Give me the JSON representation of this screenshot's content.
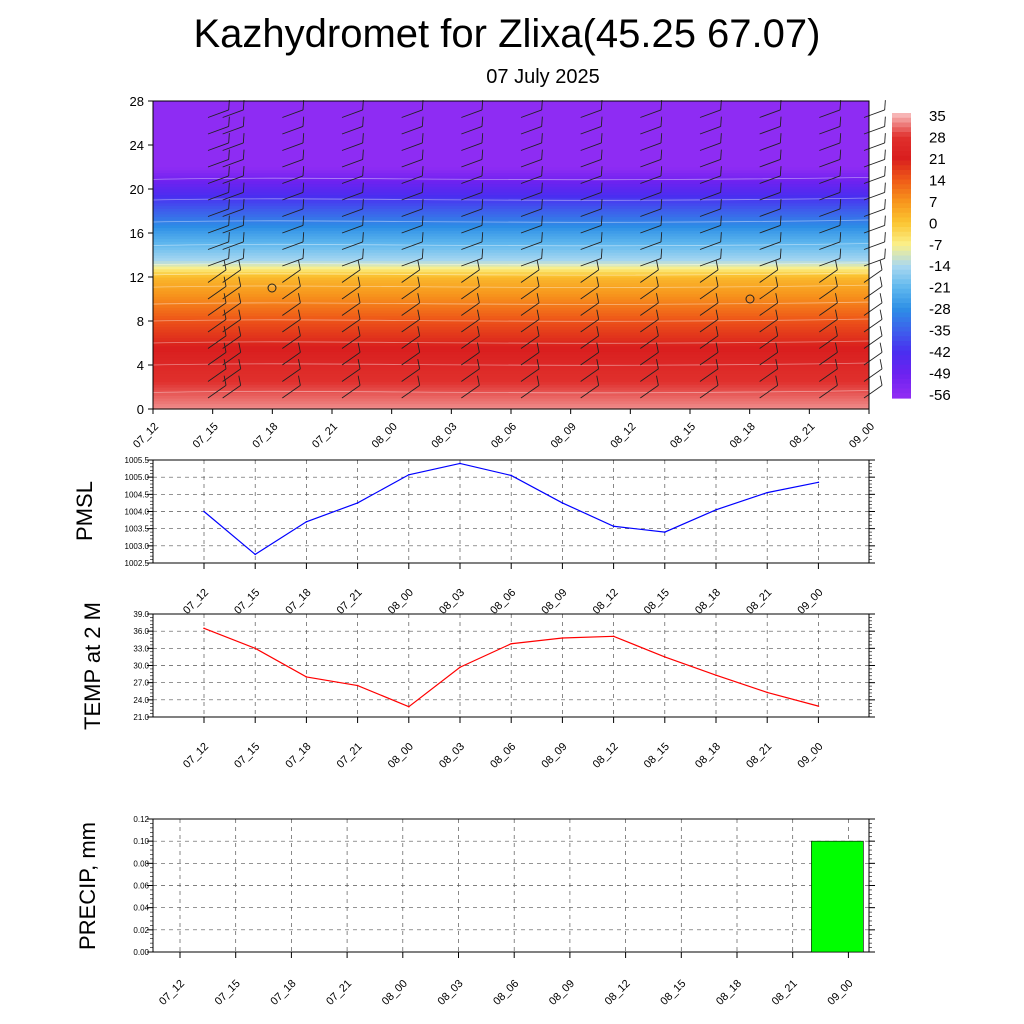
{
  "title": "Kazhydromet for Zlixa(45.25 67.07)",
  "subtitle": "07 July 2025",
  "time_labels": [
    "07_12",
    "07_15",
    "07_18",
    "07_21",
    "08_00",
    "08_03",
    "08_06",
    "08_09",
    "08_12",
    "08_15",
    "08_18",
    "08_21",
    "09_00"
  ],
  "chart_data": [
    {
      "type": "heatmap",
      "title": "",
      "xlabel": "",
      "ylabel": "",
      "x": [
        "07_12",
        "07_15",
        "07_18",
        "07_21",
        "08_00",
        "08_03",
        "08_06",
        "08_09",
        "08_12",
        "08_15",
        "08_18",
        "08_21",
        "09_00"
      ],
      "ylim": [
        0,
        28
      ],
      "yticks": [
        0,
        4,
        8,
        12,
        16,
        20,
        24,
        28
      ],
      "colorbar": {
        "labels": [
          "35",
          "28",
          "21",
          "14",
          "7",
          "0",
          "-7",
          "-14",
          "-21",
          "-28",
          "-35",
          "-42",
          "-49",
          "-56"
        ],
        "colors": [
          "#f7b5b5",
          "#e0302d",
          "#d91e1e",
          "#ef5a18",
          "#f7951c",
          "#fbc633",
          "#fbf08a",
          "#a9d8f0",
          "#5fb7ee",
          "#2d8ee6",
          "#3d60ec",
          "#4a2ef0",
          "#6d22f0",
          "#8e2cf3"
        ]
      },
      "temperature_levels": [
        {
          "height": 0,
          "value": 33
        },
        {
          "height": 4,
          "value": 25
        },
        {
          "height": 8,
          "value": 15
        },
        {
          "height": 12,
          "value": 2
        },
        {
          "height": 13.5,
          "value": -14
        },
        {
          "height": 16,
          "value": -25
        },
        {
          "height": 19,
          "value": -40
        },
        {
          "height": 22,
          "value": -56
        },
        {
          "height": 28,
          "value": -58
        }
      ]
    },
    {
      "type": "line",
      "ylabel": "PMSL",
      "x": [
        "07_12",
        "07_15",
        "07_18",
        "07_21",
        "08_00",
        "08_03",
        "08_06",
        "08_09",
        "08_12",
        "08_15",
        "08_18",
        "08_21",
        "09_00"
      ],
      "series": [
        {
          "values": [
            1004.0,
            1002.75,
            1003.7,
            1004.25,
            1005.07,
            1005.4,
            1005.05,
            1004.25,
            1003.57,
            1003.4,
            1004.05,
            1004.55,
            1004.85
          ],
          "color": "#0000ff"
        }
      ],
      "ylim": [
        1002.5,
        1005.5
      ],
      "yticks": [
        "1002.5",
        "1003.0",
        "1003.5",
        "1004.0",
        "1004.5",
        "1005.0",
        "1005.5"
      ]
    },
    {
      "type": "line",
      "ylabel": "TEMP at 2 M",
      "x": [
        "07_12",
        "07_15",
        "07_18",
        "07_21",
        "08_00",
        "08_03",
        "08_06",
        "08_09",
        "08_12",
        "08_15",
        "08_18",
        "08_21",
        "09_00"
      ],
      "series": [
        {
          "values": [
            36.5,
            33.0,
            28.0,
            26.5,
            22.8,
            29.7,
            33.8,
            34.8,
            35.1,
            31.5,
            28.3,
            25.3,
            22.9
          ],
          "color": "#ff0000"
        }
      ],
      "ylim": [
        21.0,
        39.0
      ],
      "yticks": [
        "21.0",
        "24.0",
        "27.0",
        "30.0",
        "33.0",
        "36.0",
        "39.0"
      ]
    },
    {
      "type": "bar",
      "ylabel": "PRECIP, mm",
      "categories": [
        "07_12",
        "07_15",
        "07_18",
        "07_21",
        "08_00",
        "08_03",
        "08_06",
        "08_09",
        "08_12",
        "08_15",
        "08_18",
        "08_21",
        "09_00"
      ],
      "values": [
        0,
        0,
        0,
        0,
        0,
        0,
        0,
        0,
        0,
        0,
        0,
        0,
        0.1
      ],
      "color": "#00ff00",
      "ylim": [
        0,
        0.12
      ],
      "yticks": [
        "0.00",
        "0.02",
        "0.04",
        "0.06",
        "0.08",
        "0.10",
        "0.12"
      ]
    }
  ]
}
